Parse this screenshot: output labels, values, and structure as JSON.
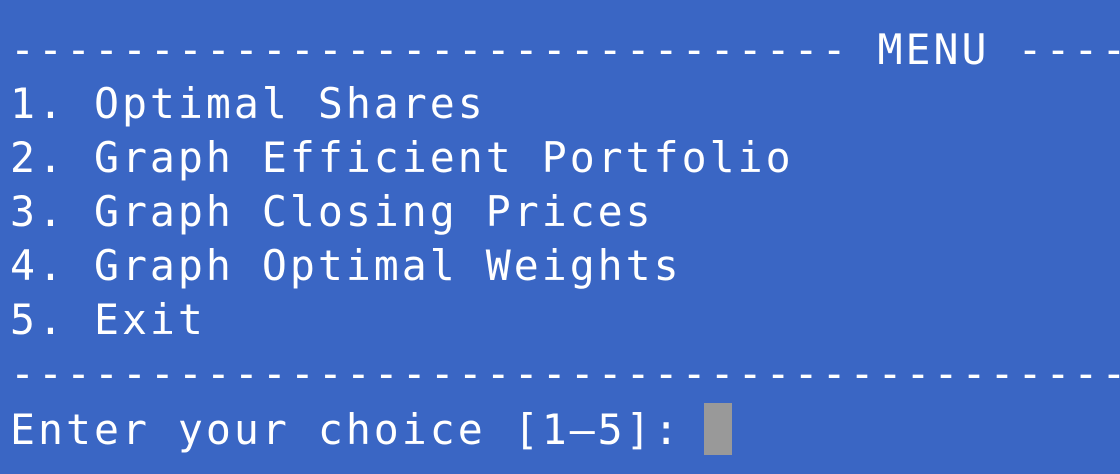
{
  "terminal": {
    "header_rule": "------------------------------ MENU ------",
    "menu_items": [
      "1. Optimal Shares",
      "2. Graph Efficient Portfolio",
      "3. Graph Closing Prices",
      "4. Graph Optimal Weights",
      "5. Exit"
    ],
    "footer_rule": "------------------------------------------------",
    "prompt": "Enter your choice [1–5]: ",
    "cursor_color": "#999999"
  },
  "colors": {
    "background": "#3a66c4",
    "text": "#ffffff"
  }
}
